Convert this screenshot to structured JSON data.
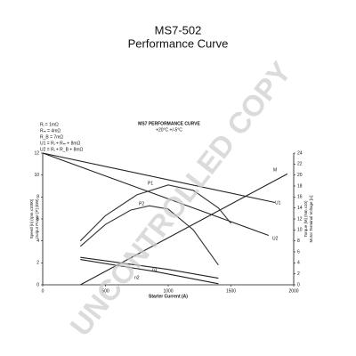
{
  "chart_data": {
    "type": "line",
    "title": "MS7-502",
    "subtitle": "Performance Curve",
    "chart_title": "MS7 PERFORMANCE CURVE",
    "chart_subtitle": "+20°C +/-5°C",
    "notes": [
      "Rᵢ = 1mΩ",
      "Rₘ = 4mΩ",
      "R_B = 7mΩ",
      "U1 = Rᵢ + Rₘ + 8mΩ",
      "U2 = Rᵢ + R_B + 8mΩ"
    ],
    "xlabel": "Starter Current (A)",
    "ylabel": [
      "Speed [n] (rpm x1000)",
      "Output Power [P] (kW)"
    ],
    "y2label": [
      "Torque [M] (Nm x10)",
      "Motor Terminal Voltage [U]"
    ],
    "watermark": "UNCONTROLLED COPY",
    "xlim": [
      0,
      2000
    ],
    "xticks": [
      0,
      500,
      1000,
      1500,
      2000
    ],
    "ylim": [
      0,
      12
    ],
    "yticks": [
      0,
      2,
      4,
      6,
      8,
      10,
      12
    ],
    "y2lim": [
      0,
      24
    ],
    "y2ticks": [
      0,
      2,
      4,
      6,
      8,
      10,
      12,
      14,
      16,
      18,
      20,
      22,
      24
    ],
    "series": [
      {
        "name": "M",
        "color": "#222",
        "axis": "y2",
        "x": [
          300,
          1950
        ],
        "values": [
          0,
          20.2
        ]
      },
      {
        "name": "U1",
        "color": "#222",
        "axis": "y2",
        "x": [
          0,
          1850
        ],
        "values": [
          24,
          15
        ]
      },
      {
        "name": "U2",
        "color": "#222",
        "axis": "y2",
        "x": [
          0,
          1800
        ],
        "values": [
          24,
          9
        ]
      },
      {
        "name": "P1",
        "color": "#333",
        "axis": "y",
        "x": [
          300,
          500,
          750,
          1000,
          1200,
          1400,
          1500
        ],
        "values": [
          4,
          6.3,
          8.2,
          9.1,
          8.6,
          7,
          5.6
        ]
      },
      {
        "name": "P2",
        "color": "#333",
        "axis": "y",
        "x": [
          300,
          500,
          700,
          850,
          1000,
          1200,
          1400
        ],
        "values": [
          3.5,
          5.5,
          6.8,
          7.2,
          6.9,
          5,
          1.8
        ]
      },
      {
        "name": "n1",
        "color": "#222",
        "axis": "y",
        "x": [
          300,
          1000,
          1400
        ],
        "values": [
          2.5,
          1.4,
          0.6
        ]
      },
      {
        "name": "n2",
        "color": "#222",
        "axis": "y",
        "x": [
          300,
          900,
          1400
        ],
        "values": [
          2.3,
          1.2,
          0.1
        ]
      }
    ]
  }
}
